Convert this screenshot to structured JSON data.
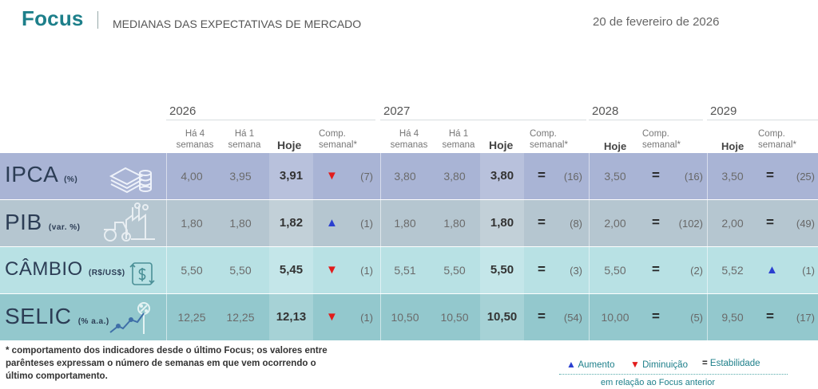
{
  "header": {
    "brand": "Focus",
    "subtitle": "MEDIANAS DAS EXPECTATIVAS DE MERCADO",
    "date": "20 de fevereiro de 2026"
  },
  "columns": {
    "years": [
      "2026",
      "2027",
      "2028",
      "2029"
    ],
    "ha4": "Há 4\nsemanas",
    "ha1": "Há 1\nsemana",
    "hoje": "Hoje",
    "comp": "Comp.\nsemanal*"
  },
  "colors": {
    "ipca": "#a9b4d5",
    "pib": "#b5c6d0",
    "cambio": "#b8e1e4",
    "selic": "#93c8cd",
    "up": "#2a3fd0",
    "down": "#e21b1b",
    "brand": "#1d7f8a"
  },
  "rows": [
    {
      "label": "IPCA",
      "unit": "(%)",
      "icon": "money-stack-icon",
      "y2026": {
        "ha4": "4,00",
        "ha1": "3,95",
        "hoje": "3,91",
        "comp": "down",
        "weeks": "(7)"
      },
      "y2027": {
        "ha4": "3,80",
        "ha1": "3,80",
        "hoje": "3,80",
        "comp": "=",
        "weeks": "(16)"
      },
      "y2028": {
        "hoje": "3,50",
        "comp": "=",
        "weeks": "(16)"
      },
      "y2029": {
        "hoje": "3,50",
        "comp": "=",
        "weeks": "(25)"
      }
    },
    {
      "label": "PIB",
      "unit": "(var. %)",
      "icon": "factory-tractor-icon",
      "y2026": {
        "ha4": "1,80",
        "ha1": "1,80",
        "hoje": "1,82",
        "comp": "up",
        "weeks": "(1)"
      },
      "y2027": {
        "ha4": "1,80",
        "ha1": "1,80",
        "hoje": "1,80",
        "comp": "=",
        "weeks": "(8)"
      },
      "y2028": {
        "hoje": "2,00",
        "comp": "=",
        "weeks": "(102)"
      },
      "y2029": {
        "hoje": "2,00",
        "comp": "=",
        "weeks": "(49)"
      }
    },
    {
      "label": "CÂMBIO",
      "unit": "(R$/US$)",
      "icon": "dollar-exchange-icon",
      "y2026": {
        "ha4": "5,50",
        "ha1": "5,50",
        "hoje": "5,45",
        "comp": "down",
        "weeks": "(1)"
      },
      "y2027": {
        "ha4": "5,51",
        "ha1": "5,50",
        "hoje": "5,50",
        "comp": "=",
        "weeks": "(3)"
      },
      "y2028": {
        "hoje": "5,50",
        "comp": "=",
        "weeks": "(2)"
      },
      "y2029": {
        "hoje": "5,52",
        "comp": "up",
        "weeks": "(1)"
      }
    },
    {
      "label": "SELIC",
      "unit": "(% a.a.)",
      "icon": "percent-chart-icon",
      "y2026": {
        "ha4": "12,25",
        "ha1": "12,25",
        "hoje": "12,13",
        "comp": "down",
        "weeks": "(1)"
      },
      "y2027": {
        "ha4": "10,50",
        "ha1": "10,50",
        "hoje": "10,50",
        "comp": "=",
        "weeks": "(54)"
      },
      "y2028": {
        "hoje": "10,00",
        "comp": "=",
        "weeks": "(5)"
      },
      "y2029": {
        "hoje": "9,50",
        "comp": "=",
        "weeks": "(17)"
      }
    }
  ],
  "footnote": "* comportamento dos indicadores desde o último Focus; os valores entre parênteses expressam o número de semanas em que vem ocorrendo o último comportamento.",
  "legend": {
    "up": "Aumento",
    "down": "Diminuição",
    "eq": "Estabilidade",
    "note": "em relação ao Focus anterior"
  }
}
